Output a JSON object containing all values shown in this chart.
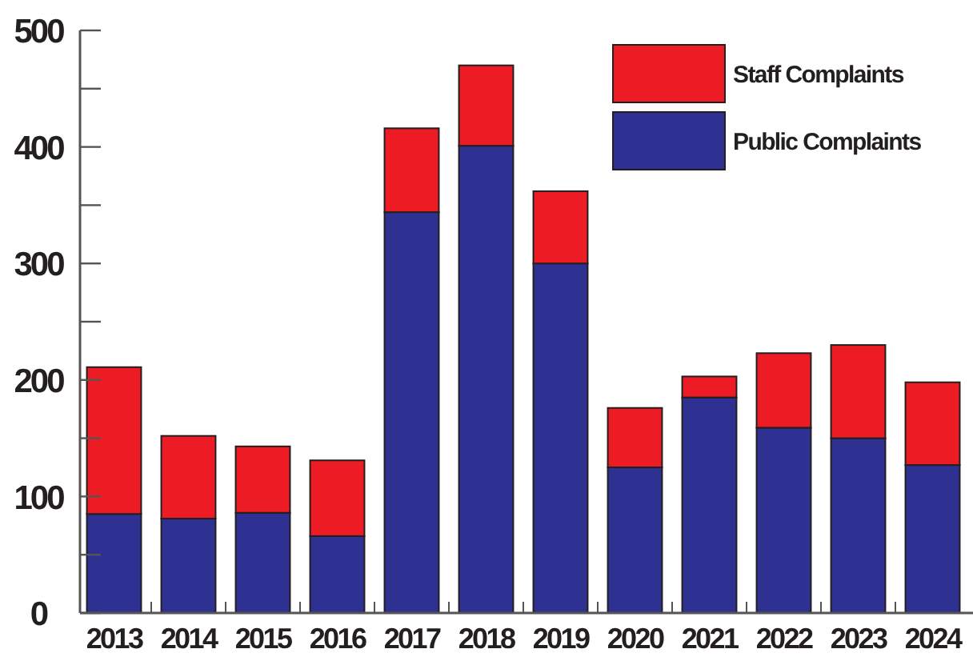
{
  "chart_data": {
    "type": "bar",
    "stacked": true,
    "categories": [
      "2013",
      "2014",
      "2015",
      "2016",
      "2017",
      "2018",
      "2019",
      "2020",
      "2021",
      "2022",
      "2023",
      "2024"
    ],
    "series": [
      {
        "name": "Public Complaints",
        "color": "#2e3192",
        "values": [
          85,
          81,
          86,
          66,
          344,
          401,
          300,
          125,
          185,
          159,
          150,
          127
        ]
      },
      {
        "name": "Staff Complaints",
        "color": "#ed1c24",
        "values": [
          126,
          71,
          57,
          65,
          72,
          69,
          62,
          51,
          18,
          64,
          80,
          71
        ]
      }
    ],
    "ylim": [
      0,
      500
    ],
    "yticks": [
      0,
      {
        "value": 50,
        "label": null
      },
      100,
      {
        "value": 150,
        "label": null
      },
      200,
      {
        "value": 250,
        "label": null
      },
      300,
      {
        "value": 350,
        "label": null
      },
      400,
      {
        "value": 450,
        "label": null
      },
      500
    ],
    "grid": false,
    "legend": "top right"
  }
}
